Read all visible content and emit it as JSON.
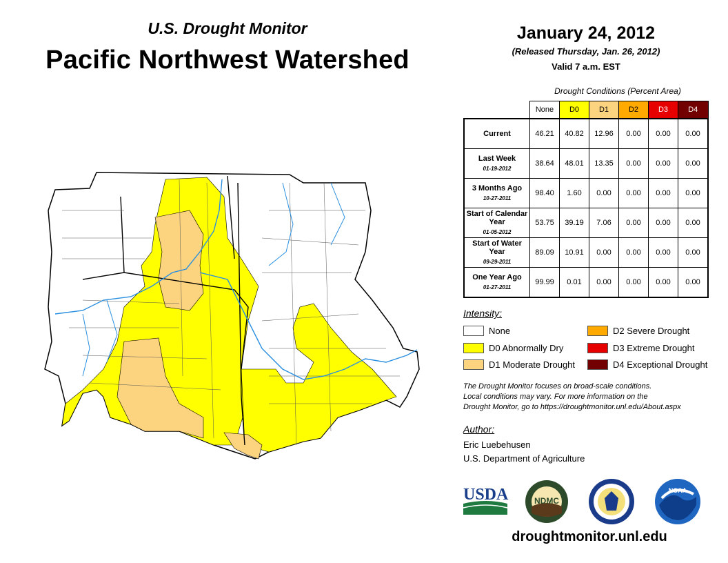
{
  "header": {
    "brand": "U.S. Drought Monitor",
    "region": "Pacific Northwest Watershed",
    "date": "January 24, 2012",
    "released": "(Released Thursday, Jan. 26, 2012)",
    "valid": "Valid 7 a.m. EST"
  },
  "table": {
    "caption": "Drought Conditions (Percent Area)",
    "columns": [
      "None",
      "D0",
      "D1",
      "D2",
      "D3",
      "D4"
    ],
    "rows": [
      {
        "label": "Current",
        "date": "",
        "values": [
          "46.21",
          "40.82",
          "12.96",
          "0.00",
          "0.00",
          "0.00"
        ]
      },
      {
        "label": "Last Week",
        "date": "01-19-2012",
        "values": [
          "38.64",
          "48.01",
          "13.35",
          "0.00",
          "0.00",
          "0.00"
        ]
      },
      {
        "label": "3 Months Ago",
        "date": "10-27-2011",
        "values": [
          "98.40",
          "1.60",
          "0.00",
          "0.00",
          "0.00",
          "0.00"
        ]
      },
      {
        "label": "Start of Calendar Year",
        "date": "01-05-2012",
        "values": [
          "53.75",
          "39.19",
          "7.06",
          "0.00",
          "0.00",
          "0.00"
        ]
      },
      {
        "label": "Start of Water Year",
        "date": "09-29-2011",
        "values": [
          "89.09",
          "10.91",
          "0.00",
          "0.00",
          "0.00",
          "0.00"
        ]
      },
      {
        "label": "One Year Ago",
        "date": "01-27-2011",
        "values": [
          "99.99",
          "0.01",
          "0.00",
          "0.00",
          "0.00",
          "0.00"
        ]
      }
    ]
  },
  "legend": {
    "title": "Intensity:",
    "items": [
      {
        "label": "None",
        "color": "#ffffff"
      },
      {
        "label": "D0 Abnormally Dry",
        "color": "#ffff00"
      },
      {
        "label": "D1 Moderate Drought",
        "color": "#fcd37f"
      },
      {
        "label": "D2 Severe Drought",
        "color": "#ffaa00"
      },
      {
        "label": "D3 Extreme Drought",
        "color": "#e60000"
      },
      {
        "label": "D4 Exceptional Drought",
        "color": "#730000"
      }
    ]
  },
  "note": {
    "line1": "The Drought Monitor focuses on broad-scale conditions.",
    "line2": "Local conditions may vary. For more information on the",
    "line3": "Drought Monitor, go to https://droughtmonitor.unl.edu/About.aspx"
  },
  "author": {
    "title": "Author:",
    "name": "Eric Luebehusen",
    "org": "U.S. Department of Agriculture"
  },
  "logos": {
    "usda": "USDA",
    "ndmc": "NDMC",
    "noaa": "NOAA"
  },
  "footer": {
    "url": "droughtmonitor.unl.edu"
  }
}
